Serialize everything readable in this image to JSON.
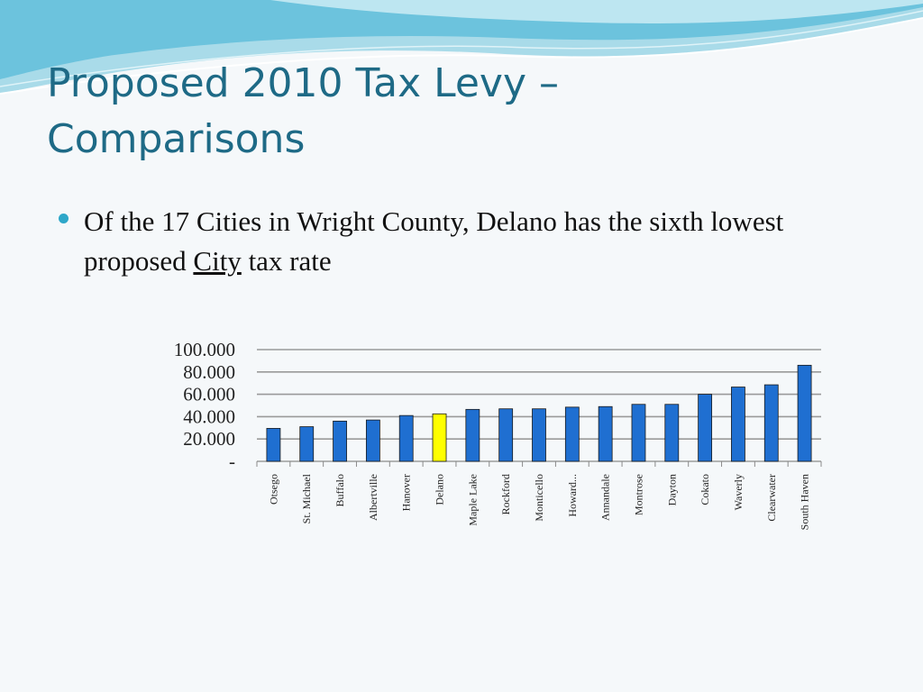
{
  "slide": {
    "title_line1": "Proposed 2010 Tax Levy –",
    "title_line2": "Comparisons",
    "bullet": {
      "text_before": "Of the 17 Cities in Wright County, Delano has the sixth lowest proposed ",
      "underlined": "City",
      "text_after": " tax rate"
    }
  },
  "colors": {
    "title": "#1e6a86",
    "bullet_dot": "#2ea7c9",
    "bar": "#1f6fd1",
    "highlight_bar": "#ffff00"
  },
  "chart_data": {
    "type": "bar",
    "title": "",
    "xlabel": "",
    "ylabel": "",
    "ylim": [
      0,
      100
    ],
    "yticks": [
      "100.000",
      "80.000",
      "60.000",
      "40.000",
      "20.000",
      "-"
    ],
    "ytick_values": [
      100,
      80,
      60,
      40,
      20,
      0
    ],
    "grid": true,
    "legend": "none",
    "highlight_category": "Delano",
    "categories": [
      "Otsego",
      "St. Michael",
      "Buffalo",
      "Albertville",
      "Hanover",
      "Delano",
      "Maple Lake",
      "Rockford",
      "Monticello",
      "Howard...",
      "Annandale",
      "Montrose",
      "Dayton",
      "Cokato",
      "Waverly",
      "Clearwater",
      "South Haven"
    ],
    "values": [
      29.5,
      31,
      36,
      37,
      41,
      42.5,
      46.5,
      47,
      47,
      48.5,
      49,
      51,
      51,
      60,
      66.5,
      68.5,
      86
    ]
  }
}
